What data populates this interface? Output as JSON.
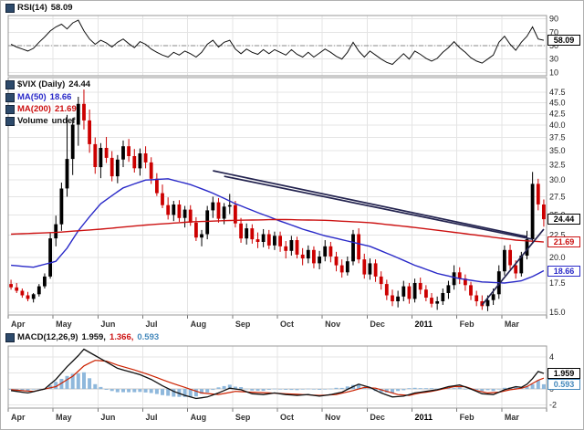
{
  "colors": {
    "up": "#000000",
    "down": "#cc0000",
    "ma50": "#2929c8",
    "ma200": "#cc1111",
    "rsi": "#111111",
    "macd_line": "#111111",
    "signal": "#cc2200",
    "hist": "#8fb8dc",
    "grid": "#e4e4e4",
    "dashed": "#888888",
    "trend": "#23234f",
    "panel_border": "#9a9a9a",
    "axis_text": "#222222",
    "month_text": "#333333"
  },
  "legend": {
    "rsi": {
      "label": "RSI(14)",
      "value": "58.09"
    },
    "main": {
      "symbol": "$VIX (Daily)",
      "value": "24.44",
      "ma50_label": "MA(50)",
      "ma50_value": "18.66",
      "ma200_label": "MA(200)",
      "ma200_value": "21.69",
      "volume_label": "Volume",
      "volume_value": "undef"
    },
    "macd": {
      "label": "MACD(12,26,9)",
      "macd_value": "1.959,",
      "signal_value": "1.366,",
      "hist_value": "0.593"
    }
  },
  "badges": {
    "rsi": "58.09",
    "price": "24.44",
    "ma200": "21.69",
    "ma50": "18.66",
    "macd": "1.959",
    "hist": "0.593"
  },
  "chart_data": [
    {
      "type": "line",
      "title": "RSI(14)",
      "panel": "rsi",
      "ylim": [
        5,
        95
      ],
      "yticks": [
        "90",
        "70",
        "50",
        "30",
        "10"
      ],
      "levels": {
        "dashed": 50
      },
      "last": 58.09,
      "values": [
        52,
        48,
        45,
        42,
        46,
        55,
        63,
        72,
        78,
        82,
        75,
        84,
        88,
        72,
        60,
        52,
        58,
        54,
        48,
        55,
        60,
        53,
        47,
        56,
        52,
        45,
        40,
        36,
        33,
        40,
        36,
        42,
        38,
        33,
        40,
        52,
        58,
        48,
        55,
        58,
        45,
        38,
        45,
        40,
        37,
        44,
        38,
        44,
        40,
        36,
        44,
        37,
        33,
        40,
        33,
        39,
        45,
        40,
        34,
        30,
        40,
        55,
        42,
        33,
        42,
        36,
        30,
        25,
        22,
        30,
        38,
        30,
        42,
        37,
        31,
        27,
        31,
        40,
        47,
        56,
        47,
        40,
        32,
        27,
        24,
        30,
        36,
        55,
        64,
        52,
        43,
        55,
        64,
        78,
        60,
        58.09
      ]
    },
    {
      "type": "candlestick",
      "title": "$VIX (Daily)",
      "panel": "price",
      "yscale": "log",
      "ylim": [
        14.8,
        51.3
      ],
      "yticks": [
        "47.5",
        "45.0",
        "42.5",
        "40.0",
        "37.5",
        "35.0",
        "32.5",
        "30.0",
        "27.5",
        "25.0",
        "22.5",
        "20.0",
        "17.5",
        "15.0"
      ],
      "months": [
        "Apr",
        "May",
        "Jun",
        "Jul",
        "Aug",
        "Sep",
        "Oct",
        "Nov",
        "Dec",
        "2011",
        "Feb",
        "Mar"
      ],
      "bold_month_index": 9,
      "candles_per_month": 8,
      "last": 24.44,
      "ohlc": [
        [
          17.4,
          17.8,
          16.9,
          17.1
        ],
        [
          17.1,
          17.5,
          16.6,
          16.8
        ],
        [
          16.8,
          17.0,
          16.2,
          16.4
        ],
        [
          16.4,
          16.7,
          15.9,
          16.1
        ],
        [
          16.1,
          16.6,
          15.8,
          16.5
        ],
        [
          16.5,
          17.4,
          16.3,
          17.2
        ],
        [
          17.2,
          18.4,
          17.0,
          18.1
        ],
        [
          18.1,
          22.8,
          17.9,
          22.1
        ],
        [
          22.1,
          24.9,
          21.2,
          23.8
        ],
        [
          23.8,
          29.6,
          23.0,
          28.7
        ],
        [
          28.7,
          42.2,
          27.5,
          33.5
        ],
        [
          33.5,
          41.5,
          30.8,
          40.1
        ],
        [
          40.1,
          46.4,
          35.9,
          44.7
        ],
        [
          44.7,
          48.2,
          39.1,
          41.0
        ],
        [
          41.0,
          43.4,
          34.6,
          36.2
        ],
        [
          36.2,
          37.5,
          31.0,
          32.1
        ],
        [
          32.1,
          36.4,
          30.3,
          35.5
        ],
        [
          35.5,
          37.6,
          32.8,
          33.7
        ],
        [
          33.7,
          34.9,
          29.8,
          30.6
        ],
        [
          30.6,
          34.2,
          29.5,
          33.4
        ],
        [
          33.4,
          36.9,
          32.1,
          35.8
        ],
        [
          35.8,
          37.2,
          33.0,
          34.0
        ],
        [
          34.0,
          35.3,
          31.2,
          31.9
        ],
        [
          31.9,
          35.4,
          30.7,
          34.5
        ],
        [
          34.5,
          35.8,
          31.9,
          32.9
        ],
        [
          32.9,
          33.8,
          29.4,
          30.2
        ],
        [
          30.2,
          31.1,
          27.6,
          28.0
        ],
        [
          28.0,
          29.3,
          25.9,
          26.3
        ],
        [
          26.3,
          27.4,
          24.4,
          25.0
        ],
        [
          25.0,
          26.9,
          24.2,
          26.4
        ],
        [
          26.4,
          27.0,
          24.1,
          24.6
        ],
        [
          24.6,
          26.2,
          23.4,
          25.7
        ],
        [
          25.7,
          26.3,
          23.6,
          24.0
        ],
        [
          24.0,
          24.7,
          21.8,
          22.2
        ],
        [
          22.2,
          23.1,
          21.2,
          22.6
        ],
        [
          22.6,
          26.2,
          22.0,
          25.6
        ],
        [
          25.6,
          27.5,
          24.6,
          26.7
        ],
        [
          26.7,
          27.3,
          24.0,
          24.5
        ],
        [
          24.5,
          26.6,
          23.8,
          26.1
        ],
        [
          26.1,
          27.9,
          25.1,
          26.3
        ],
        [
          26.3,
          26.9,
          23.4,
          23.9
        ],
        [
          23.9,
          24.6,
          21.6,
          22.1
        ],
        [
          22.1,
          23.9,
          21.4,
          23.3
        ],
        [
          23.3,
          23.8,
          21.5,
          22.0
        ],
        [
          22.0,
          22.8,
          21.0,
          21.7
        ],
        [
          21.7,
          23.2,
          21.1,
          22.6
        ],
        [
          22.6,
          23.1,
          20.9,
          21.3
        ],
        [
          21.3,
          22.9,
          20.8,
          22.4
        ],
        [
          22.4,
          22.9,
          20.6,
          21.2
        ],
        [
          21.2,
          21.8,
          19.9,
          20.7
        ],
        [
          20.7,
          22.4,
          20.2,
          21.9
        ],
        [
          21.9,
          22.3,
          19.9,
          20.3
        ],
        [
          20.3,
          21.0,
          19.2,
          19.9
        ],
        [
          19.9,
          21.3,
          19.4,
          20.8
        ],
        [
          20.8,
          21.2,
          18.9,
          19.4
        ],
        [
          19.4,
          20.7,
          18.8,
          20.1
        ],
        [
          20.1,
          21.9,
          19.6,
          21.2
        ],
        [
          21.2,
          21.7,
          19.5,
          20.1
        ],
        [
          20.1,
          20.6,
          18.6,
          19.2
        ],
        [
          19.2,
          19.8,
          18.0,
          18.5
        ],
        [
          18.5,
          20.1,
          18.2,
          19.6
        ],
        [
          19.6,
          23.1,
          19.2,
          22.6
        ],
        [
          22.6,
          23.3,
          19.4,
          19.8
        ],
        [
          19.8,
          20.4,
          17.9,
          18.3
        ],
        [
          18.3,
          19.9,
          17.8,
          19.4
        ],
        [
          19.4,
          19.8,
          17.6,
          18.1
        ],
        [
          18.1,
          18.6,
          16.9,
          17.4
        ],
        [
          17.4,
          17.8,
          16.0,
          16.4
        ],
        [
          16.4,
          16.9,
          15.5,
          15.9
        ],
        [
          15.9,
          16.8,
          15.4,
          16.3
        ],
        [
          16.3,
          17.7,
          15.9,
          17.2
        ],
        [
          17.2,
          17.5,
          15.7,
          16.1
        ],
        [
          16.1,
          17.9,
          15.8,
          17.5
        ],
        [
          17.5,
          18.0,
          16.5,
          16.9
        ],
        [
          16.9,
          17.3,
          15.9,
          16.2
        ],
        [
          16.2,
          16.6,
          15.4,
          15.7
        ],
        [
          15.7,
          16.3,
          15.2,
          15.9
        ],
        [
          15.9,
          17.0,
          15.6,
          16.6
        ],
        [
          16.6,
          17.7,
          16.1,
          17.3
        ],
        [
          17.3,
          19.2,
          16.9,
          18.5
        ],
        [
          18.5,
          19.0,
          17.4,
          17.9
        ],
        [
          17.9,
          18.3,
          16.8,
          17.3
        ],
        [
          17.3,
          17.6,
          16.0,
          16.4
        ],
        [
          16.4,
          16.8,
          15.5,
          15.9
        ],
        [
          15.9,
          16.4,
          15.2,
          15.5
        ],
        [
          15.5,
          16.4,
          15.1,
          16.0
        ],
        [
          16.0,
          17.0,
          15.6,
          16.5
        ],
        [
          16.5,
          19.2,
          16.1,
          18.6
        ],
        [
          18.6,
          21.3,
          18.2,
          20.8
        ],
        [
          20.8,
          21.4,
          18.8,
          19.2
        ],
        [
          19.2,
          19.7,
          17.9,
          18.4
        ],
        [
          18.4,
          20.6,
          18.1,
          20.2
        ],
        [
          20.2,
          23.0,
          19.8,
          22.0
        ],
        [
          22.0,
          31.3,
          21.5,
          29.4
        ],
        [
          29.4,
          30.2,
          25.6,
          26.4
        ],
        [
          26.4,
          27.1,
          23.5,
          24.44
        ]
      ],
      "overlays": [
        {
          "name": "MA(50)",
          "value": 18.66,
          "color_key": "ma50",
          "points": [
            [
              0,
              19.2
            ],
            [
              4,
              19.0
            ],
            [
              8,
              19.6
            ],
            [
              10,
              21.0
            ],
            [
              12,
              23.0
            ],
            [
              16,
              26.5
            ],
            [
              20,
              28.8
            ],
            [
              24,
              30.0
            ],
            [
              28,
              30.2
            ],
            [
              32,
              29.3
            ],
            [
              36,
              28.0
            ],
            [
              40,
              26.5
            ],
            [
              44,
              25.3
            ],
            [
              48,
              24.2
            ],
            [
              52,
              23.2
            ],
            [
              56,
              22.4
            ],
            [
              60,
              21.8
            ],
            [
              64,
              21.2
            ],
            [
              68,
              20.2
            ],
            [
              72,
              19.2
            ],
            [
              76,
              18.4
            ],
            [
              80,
              17.9
            ],
            [
              84,
              17.6
            ],
            [
              88,
              17.5
            ],
            [
              91,
              17.7
            ],
            [
              93,
              18.1
            ],
            [
              95,
              18.66
            ]
          ]
        },
        {
          "name": "MA(200)",
          "value": 21.69,
          "color_key": "ma200",
          "points": [
            [
              0,
              22.6
            ],
            [
              8,
              22.8
            ],
            [
              16,
              23.2
            ],
            [
              24,
              23.7
            ],
            [
              32,
              24.1
            ],
            [
              40,
              24.3
            ],
            [
              48,
              24.4
            ],
            [
              56,
              24.3
            ],
            [
              64,
              24.0
            ],
            [
              72,
              23.4
            ],
            [
              78,
              22.9
            ],
            [
              84,
              22.4
            ],
            [
              90,
              21.9
            ],
            [
              95,
              21.69
            ]
          ]
        }
      ],
      "trendlines": [
        [
          36,
          31.5,
          92,
          22.3
        ],
        [
          38,
          30.6,
          93,
          22.0
        ],
        [
          84,
          15.6,
          95,
          23.2
        ]
      ]
    },
    {
      "type": "macd",
      "title": "MACD(12,26,9)",
      "panel": "macd",
      "ylim": [
        -2.4,
        5.4
      ],
      "yticks": [
        "4",
        "2",
        "0",
        "-2"
      ],
      "last_macd": 1.959,
      "last_signal": 1.366,
      "last_hist": 0.593,
      "macd_points": [
        [
          0,
          -0.2
        ],
        [
          3,
          -0.5
        ],
        [
          6,
          0.0
        ],
        [
          8,
          1.2
        ],
        [
          10,
          2.8
        ],
        [
          12,
          4.2
        ],
        [
          13,
          5.0
        ],
        [
          15,
          4.2
        ],
        [
          17,
          3.4
        ],
        [
          19,
          2.6
        ],
        [
          21,
          2.2
        ],
        [
          23,
          1.8
        ],
        [
          25,
          1.2
        ],
        [
          27,
          0.4
        ],
        [
          29,
          -0.3
        ],
        [
          31,
          -0.8
        ],
        [
          33,
          -1.2
        ],
        [
          35,
          -1.0
        ],
        [
          37,
          -0.5
        ],
        [
          39,
          0.1
        ],
        [
          41,
          -0.1
        ],
        [
          43,
          -0.6
        ],
        [
          45,
          -0.7
        ],
        [
          47,
          -0.5
        ],
        [
          49,
          -0.7
        ],
        [
          51,
          -0.8
        ],
        [
          53,
          -0.7
        ],
        [
          55,
          -0.9
        ],
        [
          57,
          -0.7
        ],
        [
          59,
          -0.4
        ],
        [
          61,
          0.3
        ],
        [
          62,
          0.6
        ],
        [
          64,
          0.2
        ],
        [
          66,
          -0.5
        ],
        [
          68,
          -1.0
        ],
        [
          70,
          -0.9
        ],
        [
          72,
          -0.5
        ],
        [
          74,
          -0.3
        ],
        [
          76,
          -0.1
        ],
        [
          78,
          0.3
        ],
        [
          80,
          0.5
        ],
        [
          82,
          0.0
        ],
        [
          84,
          -0.6
        ],
        [
          86,
          -0.7
        ],
        [
          88,
          -0.1
        ],
        [
          90,
          0.3
        ],
        [
          91,
          0.2
        ],
        [
          92,
          0.6
        ],
        [
          93,
          1.3
        ],
        [
          94,
          2.2
        ],
        [
          95,
          1.959
        ]
      ],
      "signal_points": [
        [
          0,
          -0.1
        ],
        [
          4,
          -0.3
        ],
        [
          8,
          0.3
        ],
        [
          11,
          1.6
        ],
        [
          13,
          2.9
        ],
        [
          15,
          3.6
        ],
        [
          17,
          3.5
        ],
        [
          19,
          3.0
        ],
        [
          22,
          2.4
        ],
        [
          25,
          1.7
        ],
        [
          28,
          0.9
        ],
        [
          31,
          0.2
        ],
        [
          34,
          -0.5
        ],
        [
          37,
          -0.7
        ],
        [
          40,
          -0.3
        ],
        [
          43,
          -0.4
        ],
        [
          46,
          -0.5
        ],
        [
          49,
          -0.6
        ],
        [
          52,
          -0.7
        ],
        [
          55,
          -0.8
        ],
        [
          58,
          -0.7
        ],
        [
          61,
          -0.2
        ],
        [
          63,
          0.2
        ],
        [
          65,
          0.1
        ],
        [
          67,
          -0.3
        ],
        [
          69,
          -0.7
        ],
        [
          71,
          -0.8
        ],
        [
          73,
          -0.5
        ],
        [
          75,
          -0.3
        ],
        [
          77,
          0.0
        ],
        [
          79,
          0.3
        ],
        [
          81,
          0.3
        ],
        [
          83,
          -0.2
        ],
        [
          85,
          -0.5
        ],
        [
          87,
          -0.4
        ],
        [
          89,
          -0.1
        ],
        [
          91,
          0.1
        ],
        [
          92,
          0.3
        ],
        [
          93,
          0.7
        ],
        [
          94,
          1.1
        ],
        [
          95,
          1.366
        ]
      ]
    }
  ]
}
